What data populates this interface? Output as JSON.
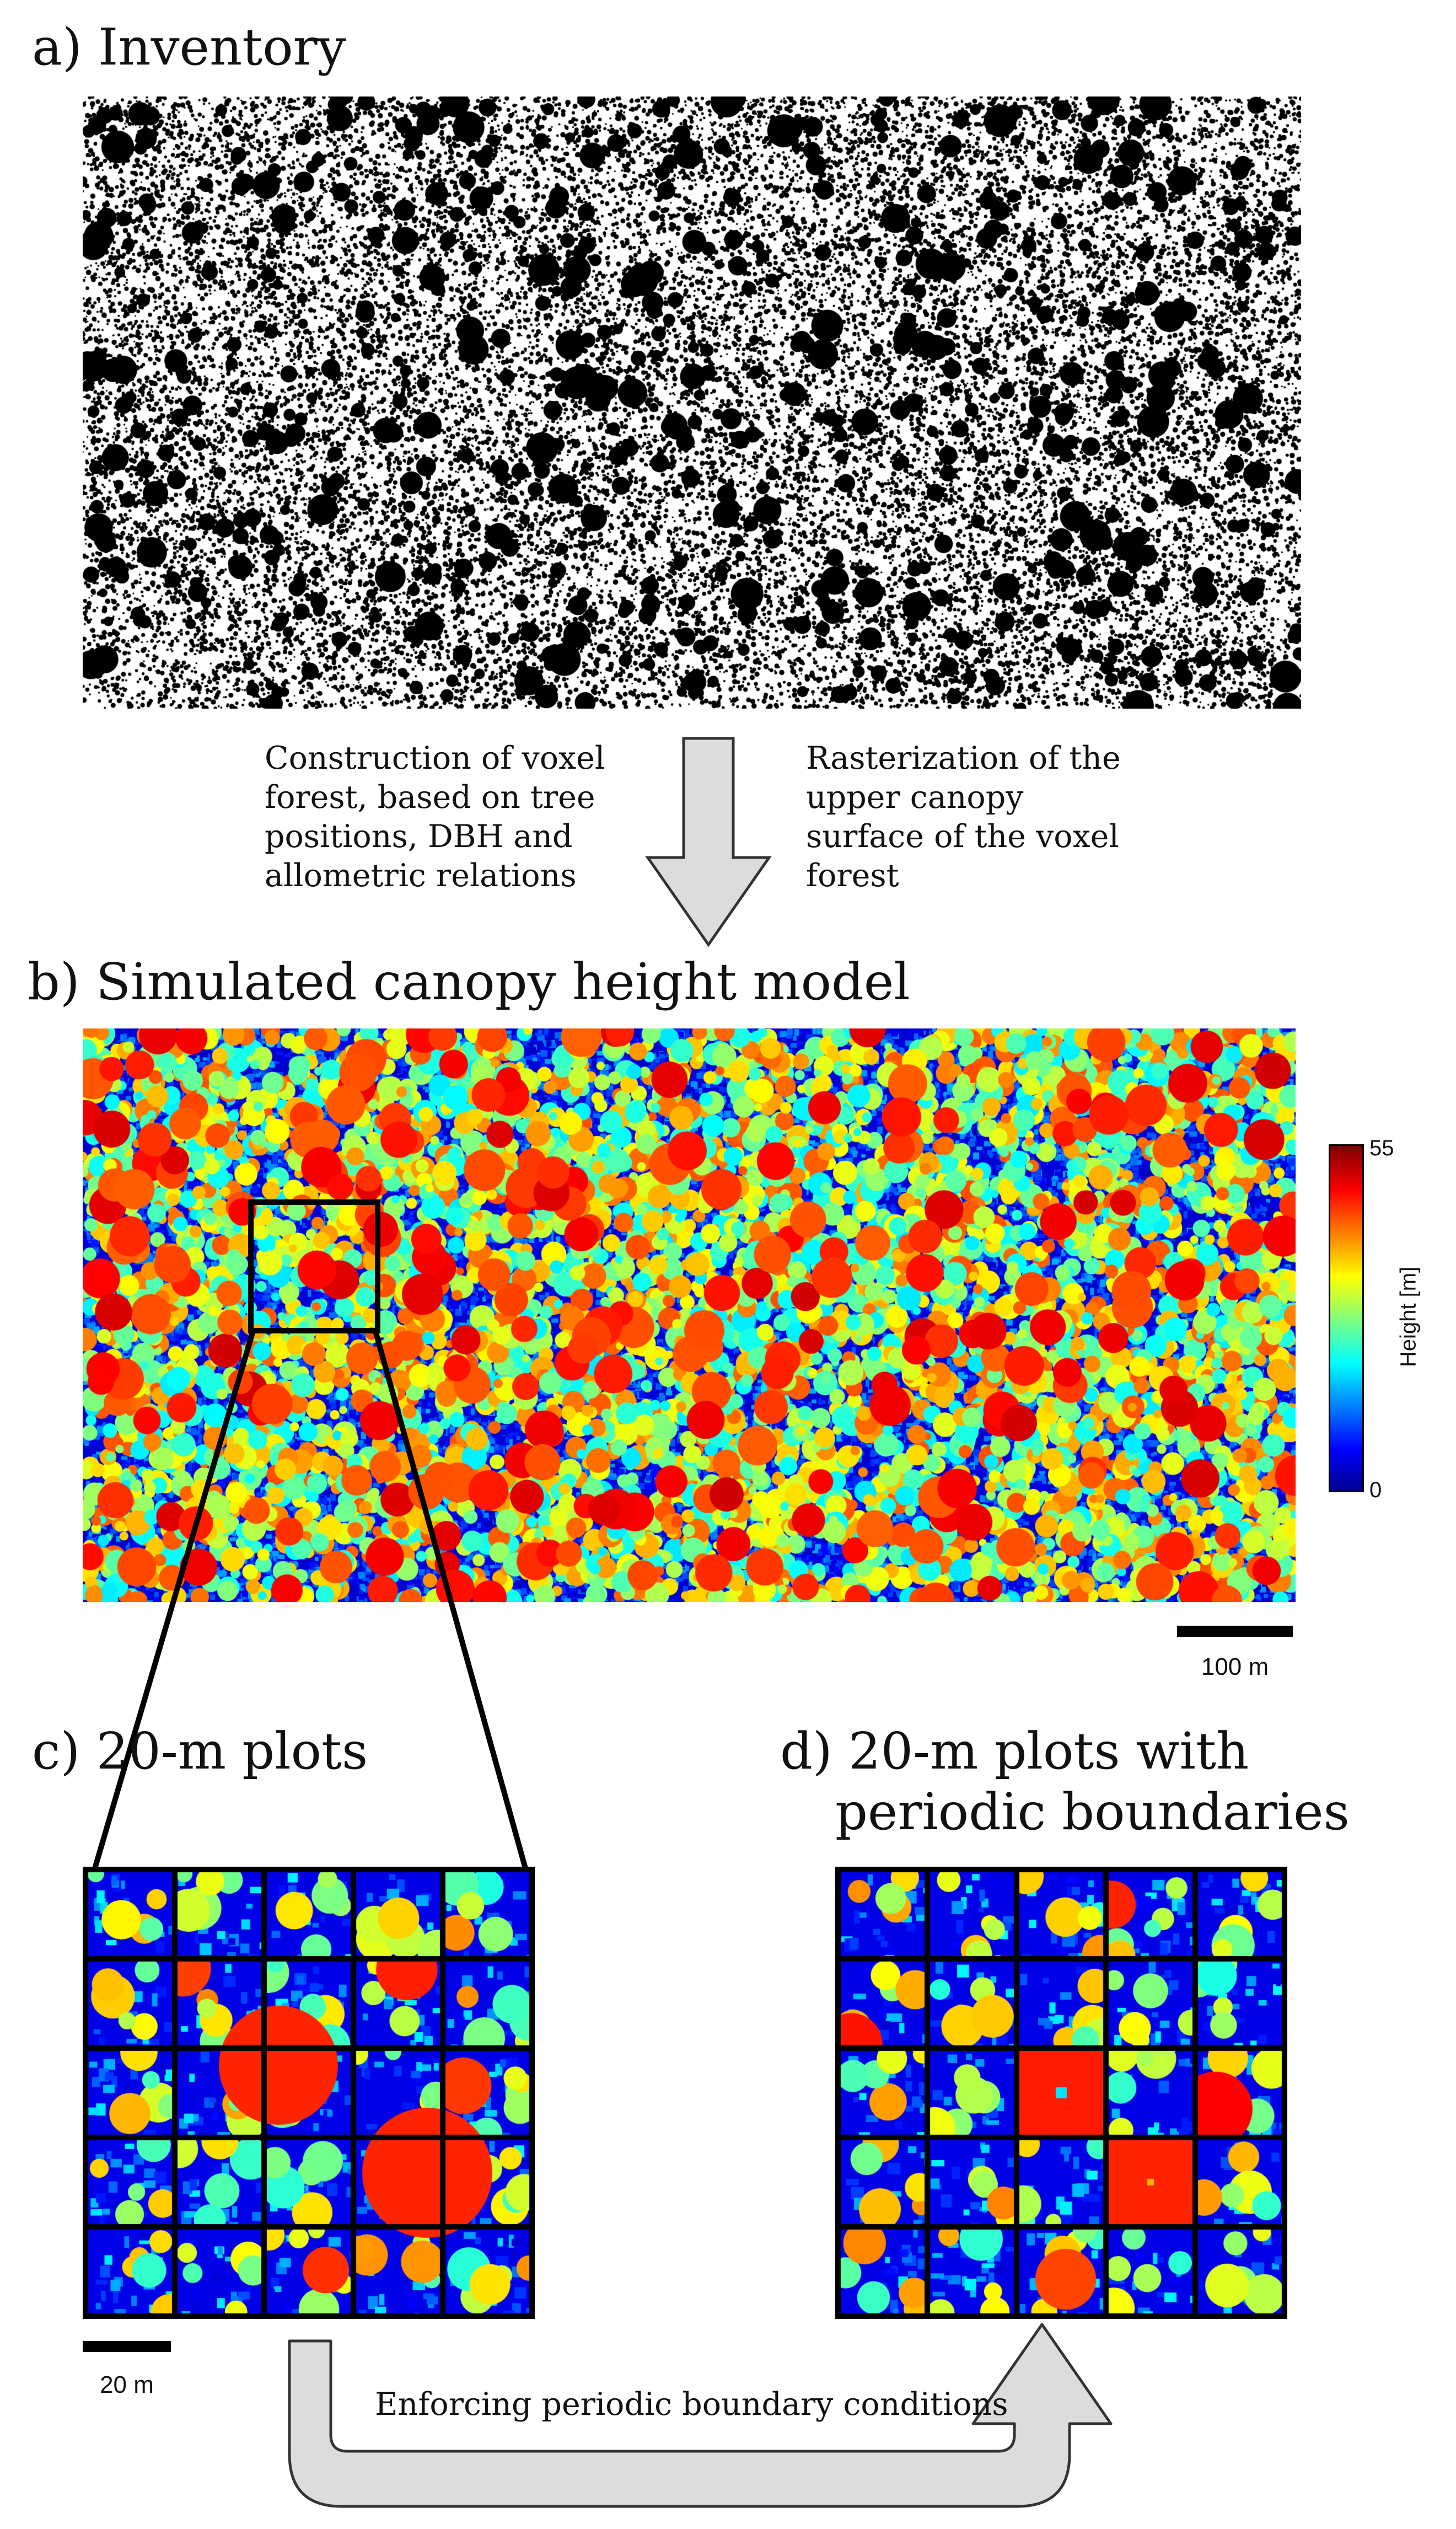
{
  "panels": {
    "a": {
      "label": "a) Inventory"
    },
    "b": {
      "label": "b) Simulated canopy height model"
    },
    "c": {
      "label": "c) 20-m plots"
    },
    "d": {
      "label_line1": "d) 20-m plots with",
      "label_line2": "periodic boundaries"
    }
  },
  "annotations": {
    "construction": [
      "Construction of voxel",
      "forest, based on tree",
      "positions, DBH and",
      "allometric relations"
    ],
    "rasterization": [
      "Rasterization of the",
      "upper canopy",
      "surface of the voxel",
      "forest"
    ],
    "periodic": "Enforcing periodic boundary conditions"
  },
  "colorbar": {
    "min_label": "0",
    "max_label": "55",
    "axis_label": "Height [m]",
    "colormap": "jet",
    "colors": [
      "#00008f",
      "#0000ff",
      "#00ffff",
      "#ffff00",
      "#ff0000",
      "#800000"
    ]
  },
  "scalebars": {
    "chm": "100 m",
    "plots": "20 m"
  },
  "plot_grid": {
    "rows": 5,
    "cols": 5
  },
  "colors": {
    "arrow_fill": "#dcdcdc",
    "arrow_stroke": "#333333",
    "inventory_fill": "#000000"
  }
}
